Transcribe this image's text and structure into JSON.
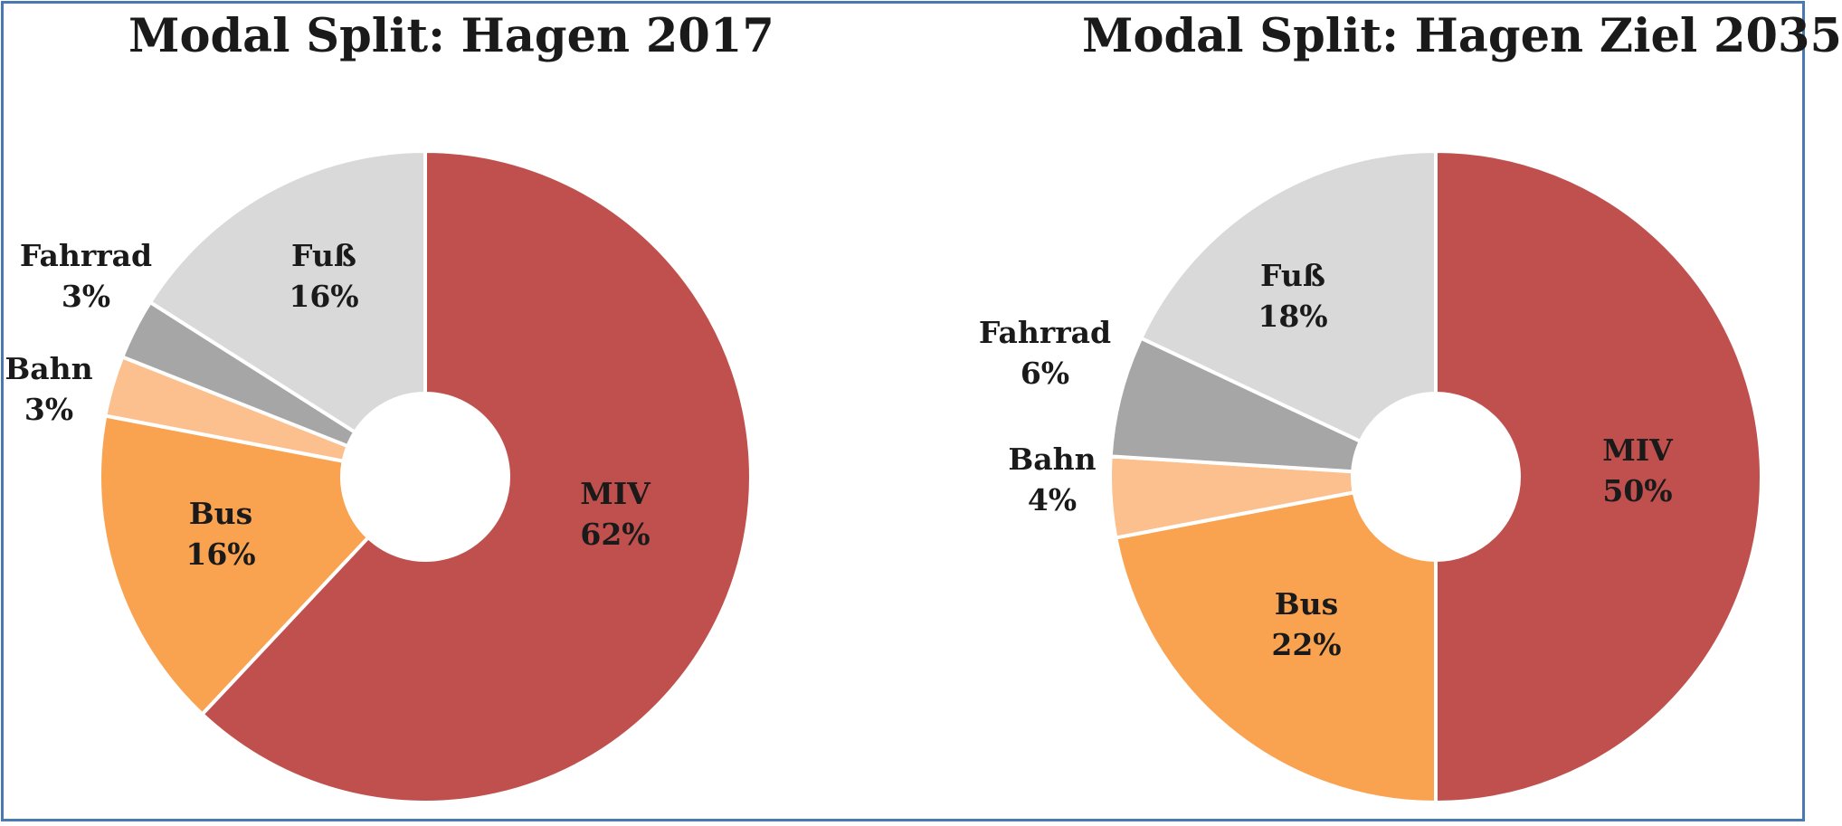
{
  "chart_data": [
    {
      "type": "pie",
      "title": "Modal Split: Hagen 2017",
      "slices": [
        {
          "label": "MIV",
          "value": 62,
          "display": "62%",
          "color": "#c0504d"
        },
        {
          "label": "Bus",
          "value": 16,
          "display": "16%",
          "color": "#f9a350"
        },
        {
          "label": "Bahn",
          "value": 3,
          "display": "3%",
          "color": "#fbc08e"
        },
        {
          "label": "Fahrrad",
          "value": 3,
          "display": "3%",
          "color": "#a6a6a6"
        },
        {
          "label": "Fuß",
          "value": 16,
          "display": "16%",
          "color": "#d9d9d9"
        }
      ],
      "legend": "none"
    },
    {
      "type": "pie",
      "title": "Modal Split: Hagen Ziel 2035",
      "slices": [
        {
          "label": "MIV",
          "value": 50,
          "display": "50%",
          "color": "#c0504d"
        },
        {
          "label": "Bus",
          "value": 22,
          "display": "22%",
          "color": "#f9a350"
        },
        {
          "label": "Bahn",
          "value": 4,
          "display": "4%",
          "color": "#fbc08e"
        },
        {
          "label": "Fahrrad",
          "value": 6,
          "display": "6%",
          "color": "#a6a6a6"
        },
        {
          "label": "Fuß",
          "value": 18,
          "display": "18%",
          "color": "#d9d9d9"
        }
      ],
      "legend": "none"
    }
  ]
}
